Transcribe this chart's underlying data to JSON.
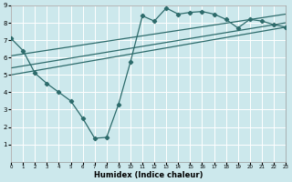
{
  "xlabel": "Humidex (Indice chaleur)",
  "bg_color": "#cce8ec",
  "grid_color": "#ffffff",
  "line_color": "#2d6b6b",
  "xlim": [
    0,
    23
  ],
  "ylim": [
    0,
    9
  ],
  "xticks": [
    0,
    1,
    2,
    3,
    4,
    5,
    6,
    7,
    8,
    9,
    10,
    11,
    12,
    13,
    14,
    15,
    16,
    17,
    18,
    19,
    20,
    21,
    22,
    23
  ],
  "yticks": [
    1,
    2,
    3,
    4,
    5,
    6,
    7,
    8,
    9
  ],
  "main_series": {
    "x": [
      0,
      1,
      2,
      3,
      4,
      5,
      6,
      7,
      8,
      9,
      10,
      11,
      12,
      13,
      14,
      15,
      16,
      17,
      18,
      19,
      20,
      21,
      22,
      23
    ],
    "y": [
      7.1,
      6.4,
      5.1,
      4.5,
      4.0,
      3.5,
      2.5,
      1.35,
      1.4,
      3.3,
      5.75,
      8.4,
      8.1,
      8.85,
      8.5,
      8.6,
      8.65,
      8.5,
      8.2,
      7.7,
      8.2,
      8.1,
      7.9,
      7.75
    ]
  },
  "straight_lines": [
    {
      "x0": 0,
      "y0": 5.0,
      "x1": 23,
      "y1": 7.75
    },
    {
      "x0": 0,
      "y0": 5.4,
      "x1": 23,
      "y1": 8.0
    },
    {
      "x0": 0,
      "y0": 6.1,
      "x1": 23,
      "y1": 8.5
    }
  ]
}
